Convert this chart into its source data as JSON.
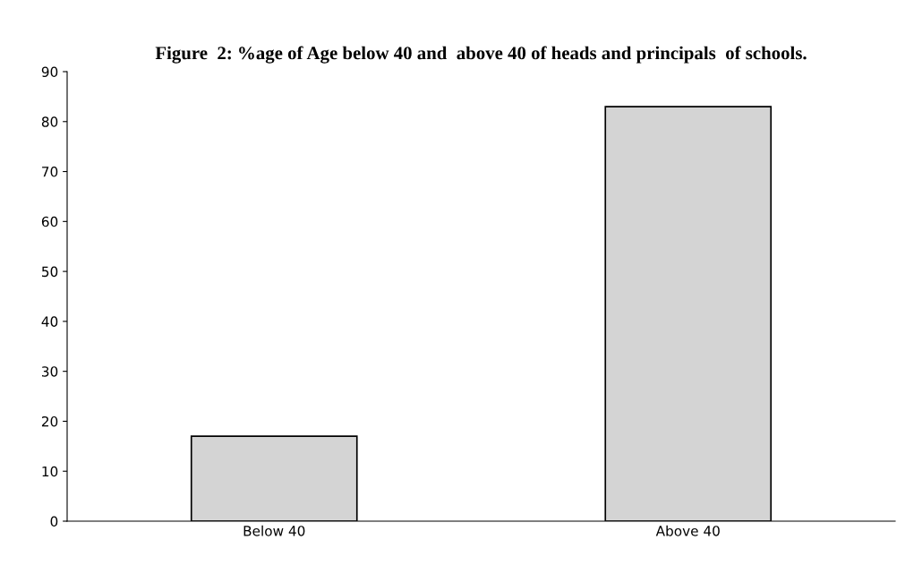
{
  "chart_data": {
    "type": "bar",
    "title": "Figure  2: %age of Age below 40 and  above 40 of heads and principals  of schools.",
    "categories": [
      "Below 40",
      "Above 40"
    ],
    "values": [
      17,
      83
    ],
    "color": "#d4d4d4",
    "ylim": [
      0,
      90
    ],
    "yticks": [
      0,
      10,
      20,
      30,
      40,
      50,
      60,
      70,
      80,
      90
    ],
    "grid": false,
    "legend": false
  }
}
